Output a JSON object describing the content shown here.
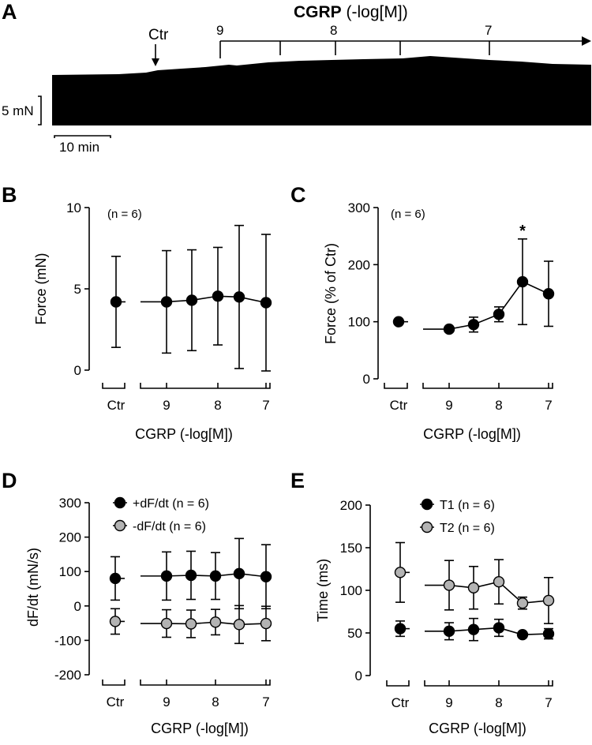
{
  "figure": {
    "panel_letters": [
      "A",
      "B",
      "C",
      "D",
      "E"
    ],
    "concentration_labels": [
      "9",
      "8",
      "7"
    ]
  },
  "colors": {
    "ink": "#000000",
    "gray_marker": "#b3b3b3",
    "background": "#ffffff"
  },
  "trace_panel": {
    "title_bold": "CGRP",
    "title_rest": " (-log[M])",
    "ctr_label": "Ctr",
    "ticks": [
      "9",
      "8",
      "7"
    ],
    "scale_force": "5 mN",
    "scale_time": "10 min"
  },
  "chart_data": [
    {
      "id": "B",
      "type": "line",
      "title": "",
      "xlabel": "CGRP (-log[M])",
      "ylabel": "Force (mN)",
      "annotation": "(n = 6)",
      "categories": [
        "Ctr",
        "9",
        "8.5",
        "8",
        "7.5",
        "7"
      ],
      "x_tick_labels": [
        "Ctr",
        "9",
        "8",
        "7"
      ],
      "ylim": [
        0,
        10
      ],
      "yticks": [
        "0",
        "5",
        "10"
      ],
      "series": [
        {
          "name": "Force",
          "marker": "black",
          "values": [
            4.2,
            4.2,
            4.3,
            4.55,
            4.5,
            4.15
          ],
          "error": [
            2.8,
            3.15,
            3.1,
            3.0,
            4.4,
            4.2
          ]
        }
      ]
    },
    {
      "id": "C",
      "type": "line",
      "title": "",
      "xlabel": "CGRP (-log[M])",
      "ylabel": "Force (% of Ctr)",
      "annotation": "(n = 6)",
      "significance": "*",
      "categories": [
        "Ctr",
        "9",
        "8.5",
        "8",
        "7.5",
        "7"
      ],
      "x_tick_labels": [
        "Ctr",
        "9",
        "8",
        "7"
      ],
      "ylim": [
        0,
        300
      ],
      "yticks": [
        "0",
        "100",
        "200",
        "300"
      ],
      "series": [
        {
          "name": "Force % of Ctr",
          "marker": "black",
          "values": [
            100,
            87,
            95,
            113,
            170,
            149
          ],
          "error": [
            0,
            4,
            13,
            13,
            75,
            57
          ]
        }
      ]
    },
    {
      "id": "D",
      "type": "line",
      "title": "",
      "xlabel": "CGRP (-log[M])",
      "ylabel": "dF/dt (mN/s)",
      "categories": [
        "Ctr",
        "9",
        "8.5",
        "8",
        "7.5",
        "7"
      ],
      "x_tick_labels": [
        "Ctr",
        "9",
        "8",
        "7"
      ],
      "ylim": [
        -200,
        300
      ],
      "yticks": [
        "-200",
        "-100",
        "0",
        "100",
        "200",
        "300"
      ],
      "legend_position": "top-left",
      "series": [
        {
          "name": "+dF/dt (n = 6)",
          "marker": "black",
          "values": [
            80,
            87,
            89,
            87,
            94,
            85
          ],
          "error": [
            63,
            70,
            70,
            68,
            102,
            93
          ]
        },
        {
          "name": "-dF/dt (n = 6)",
          "marker": "gray",
          "values": [
            -45,
            -51,
            -52,
            -47,
            -54,
            -51
          ],
          "error": [
            37,
            40,
            40,
            37,
            55,
            50
          ]
        }
      ]
    },
    {
      "id": "E",
      "type": "line",
      "title": "",
      "xlabel": "CGRP (-log[M])",
      "ylabel": "Time (ms)",
      "categories": [
        "Ctr",
        "9",
        "8.5",
        "8",
        "7.5",
        "7"
      ],
      "x_tick_labels": [
        "Ctr",
        "9",
        "8",
        "7"
      ],
      "ylim": [
        0,
        200
      ],
      "yticks": [
        "0",
        "50",
        "100",
        "150",
        "200"
      ],
      "legend_position": "top-left",
      "series": [
        {
          "name": "T1 (n = 6)",
          "marker": "black",
          "values": [
            55,
            52,
            54,
            56,
            48,
            49
          ],
          "error": [
            9,
            10,
            13,
            10,
            3,
            6
          ]
        },
        {
          "name": "T2 (n = 6)",
          "marker": "gray",
          "values": [
            121,
            106,
            103,
            110,
            85,
            88
          ],
          "error": [
            35,
            29,
            25,
            26,
            7,
            27
          ]
        }
      ]
    }
  ]
}
